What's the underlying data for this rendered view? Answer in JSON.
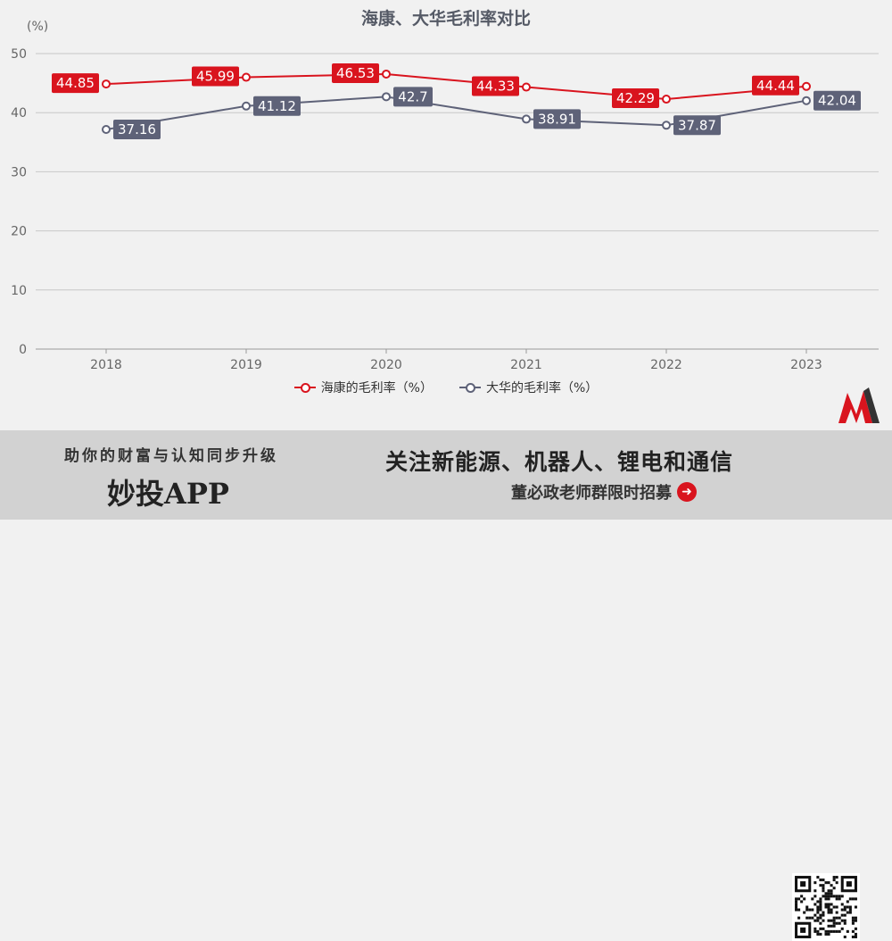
{
  "title": "海康、大华毛利率对比",
  "unit_label": "(%)",
  "colors": {
    "hikvision": "#d9141e",
    "dahua": "#5e6278",
    "grid": "#c8c8c8",
    "axis": "#999999"
  },
  "chart_data": {
    "type": "line",
    "title": "海康、大华毛利率对比",
    "ylabel": "(%)",
    "x": [
      "2018",
      "2019",
      "2020",
      "2021",
      "2022",
      "2023"
    ],
    "ylim": [
      0,
      50
    ],
    "yticks": [
      0,
      10,
      20,
      30,
      40,
      50
    ],
    "series": [
      {
        "name": "海康的毛利率（%）",
        "values": [
          44.85,
          45.99,
          46.53,
          44.33,
          42.29,
          44.44
        ]
      },
      {
        "name": "大华的毛利率（%）",
        "values": [
          37.16,
          41.12,
          42.7,
          38.91,
          37.87,
          42.04
        ]
      }
    ],
    "legend_position": "bottom",
    "grid": true
  },
  "logo": {
    "icon": "m-logo-icon"
  },
  "banner": {
    "line1": "助你的财富与认知同步升级",
    "app_name": "妙投APP",
    "right_line1": "关注新能源、机器人、锂电和通信",
    "right_line2": "董必政老师群限时招募",
    "arrow_icon": "arrow-right-circle-icon",
    "qr_icon": "qr-code-icon"
  }
}
